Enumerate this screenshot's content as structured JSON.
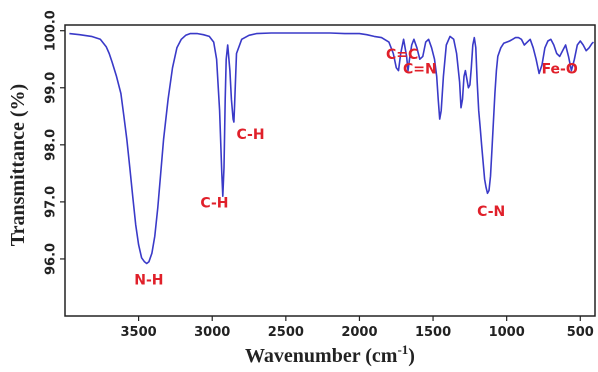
{
  "chart_data": {
    "type": "line",
    "title": "",
    "xlabel": "Wavenumber (cm",
    "xlabel_sup": "-1",
    "xlabel_end": ")",
    "ylabel": "Transmittance (%)",
    "xlim": [
      4000,
      400
    ],
    "ylim": [
      95.0,
      100.1
    ],
    "x_ticks": [
      3500,
      3000,
      2500,
      2000,
      1500,
      1000,
      500
    ],
    "y_ticks": [
      96.0,
      97.0,
      98.0,
      99.0,
      100.0
    ],
    "x_tick_labels": [
      "3500",
      "3000",
      "2500",
      "2000",
      "1500",
      "1000",
      "500"
    ],
    "y_tick_labels": [
      "96.0",
      "97.0",
      "98.0",
      "99.0",
      "100.0"
    ],
    "grid": false,
    "series": [
      {
        "color": "#3a3ac8",
        "x": [
          3970,
          3900,
          3820,
          3760,
          3720,
          3700,
          3680,
          3650,
          3620,
          3600,
          3580,
          3560,
          3540,
          3520,
          3500,
          3480,
          3460,
          3445,
          3430,
          3410,
          3390,
          3370,
          3350,
          3330,
          3300,
          3270,
          3240,
          3210,
          3180,
          3150,
          3100,
          3060,
          3020,
          2990,
          2970,
          2950,
          2935,
          2928,
          2920,
          2912,
          2905,
          2895,
          2880,
          2870,
          2858,
          2853,
          2848,
          2835,
          2800,
          2750,
          2700,
          2600,
          2500,
          2400,
          2300,
          2200,
          2100,
          2000,
          1950,
          1900,
          1850,
          1800,
          1770,
          1750,
          1735,
          1720,
          1700,
          1680,
          1670,
          1660,
          1645,
          1630,
          1610,
          1590,
          1570,
          1550,
          1530,
          1510,
          1490,
          1475,
          1465,
          1455,
          1445,
          1430,
          1410,
          1385,
          1360,
          1340,
          1320,
          1310,
          1300,
          1290,
          1280,
          1270,
          1260,
          1250,
          1240,
          1230,
          1220,
          1210,
          1200,
          1190,
          1180,
          1170,
          1160,
          1150,
          1140,
          1130,
          1120,
          1110,
          1100,
          1090,
          1080,
          1070,
          1060,
          1040,
          1020,
          1000,
          980,
          960,
          940,
          920,
          900,
          880,
          860,
          840,
          820,
          800,
          780,
          760,
          740,
          720,
          700,
          680,
          660,
          640,
          620,
          600,
          580,
          560,
          540,
          520,
          500,
          480,
          460,
          440,
          420,
          410
        ],
        "y": [
          99.95,
          99.93,
          99.9,
          99.85,
          99.72,
          99.6,
          99.45,
          99.2,
          98.9,
          98.5,
          98.1,
          97.6,
          97.1,
          96.6,
          96.25,
          96.02,
          95.95,
          95.92,
          95.95,
          96.1,
          96.4,
          96.9,
          97.5,
          98.1,
          98.8,
          99.35,
          99.7,
          99.85,
          99.92,
          99.95,
          99.95,
          99.93,
          99.9,
          99.8,
          99.5,
          98.6,
          97.5,
          97.1,
          97.6,
          98.8,
          99.5,
          99.75,
          99.3,
          98.8,
          98.45,
          98.4,
          98.7,
          99.6,
          99.85,
          99.92,
          99.95,
          99.96,
          99.96,
          99.96,
          99.96,
          99.96,
          99.95,
          99.95,
          99.93,
          99.9,
          99.88,
          99.8,
          99.6,
          99.35,
          99.3,
          99.6,
          99.85,
          99.55,
          99.3,
          99.5,
          99.75,
          99.85,
          99.7,
          99.5,
          99.55,
          99.8,
          99.85,
          99.7,
          99.5,
          99.2,
          98.8,
          98.45,
          98.6,
          99.2,
          99.75,
          99.9,
          99.85,
          99.6,
          99.1,
          98.65,
          98.8,
          99.2,
          99.3,
          99.15,
          99.0,
          99.05,
          99.35,
          99.75,
          99.88,
          99.7,
          99.1,
          98.6,
          98.3,
          98.0,
          97.7,
          97.4,
          97.25,
          97.15,
          97.2,
          97.45,
          97.9,
          98.4,
          98.9,
          99.3,
          99.55,
          99.7,
          99.78,
          99.8,
          99.82,
          99.85,
          99.88,
          99.88,
          99.85,
          99.75,
          99.8,
          99.85,
          99.7,
          99.5,
          99.25,
          99.4,
          99.7,
          99.82,
          99.85,
          99.75,
          99.6,
          99.55,
          99.65,
          99.75,
          99.55,
          99.3,
          99.5,
          99.75,
          99.82,
          99.75,
          99.65,
          99.7,
          99.78,
          99.8
        ]
      }
    ],
    "annotations": [
      {
        "text": "N-H",
        "x": 3430,
        "y": 95.55,
        "color": "#e0202a"
      },
      {
        "text": "C-H",
        "x": 2985,
        "y": 96.9,
        "color": "#e0202a"
      },
      {
        "text": "C-H",
        "x": 2740,
        "y": 98.1,
        "color": "#e0202a"
      },
      {
        "text": "C=C",
        "x": 1710,
        "y": 99.5,
        "color": "#e0202a"
      },
      {
        "text": "C=N",
        "x": 1590,
        "y": 99.25,
        "color": "#e0202a"
      },
      {
        "text": "C-N",
        "x": 1105,
        "y": 96.75,
        "color": "#e0202a"
      },
      {
        "text": "Fe-O",
        "x": 640,
        "y": 99.25,
        "color": "#e0202a"
      }
    ]
  }
}
